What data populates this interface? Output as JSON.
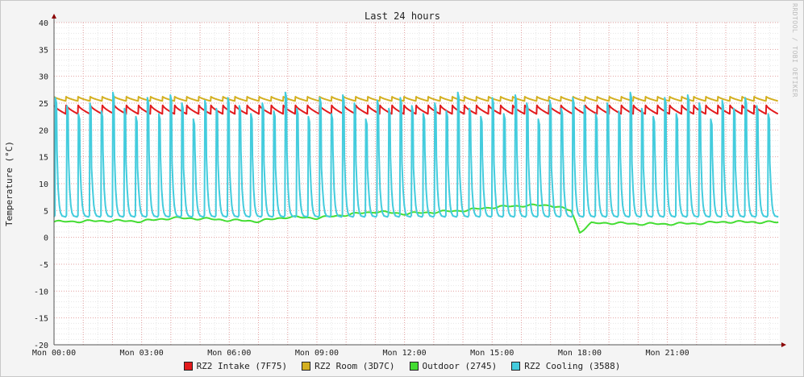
{
  "chart_data": {
    "type": "line",
    "title": "Last 24 hours",
    "ylabel": "Temperature (°C)",
    "xlabel": "",
    "ylim": [
      -20,
      40
    ],
    "yticks": [
      40,
      35,
      30,
      25,
      20,
      15,
      10,
      5,
      0,
      -5,
      -10,
      -15,
      -20
    ],
    "xlim_hours": [
      0,
      24.85
    ],
    "xticks": [
      {
        "hour": 0,
        "label": "Mon 00:00"
      },
      {
        "hour": 3,
        "label": "Mon 03:00"
      },
      {
        "hour": 6,
        "label": "Mon 06:00"
      },
      {
        "hour": 9,
        "label": "Mon 09:00"
      },
      {
        "hour": 12,
        "label": "Mon 12:00"
      },
      {
        "hour": 15,
        "label": "Mon 15:00"
      },
      {
        "hour": 18,
        "label": "Mon 18:00"
      },
      {
        "hour": 21,
        "label": "Mon 21:00"
      }
    ],
    "grid": true,
    "legend_position": "bottom",
    "watermark": "RRDTOOL / TOBI OETIKER",
    "series": [
      {
        "name": "RZ2 Intake (7F75)",
        "color": "#e31a1c",
        "pattern": "sawtooth",
        "min": 23.0,
        "max": 24.6,
        "cycles": 60
      },
      {
        "name": "RZ2 Room (3D7C)",
        "color": "#d4b020",
        "pattern": "sawtooth",
        "min": 25.4,
        "max": 26.2,
        "cycles": 60
      },
      {
        "name": "Outdoor (2745)",
        "color": "#44dd33",
        "pattern": "trend",
        "hours": [
          0,
          1,
          2,
          3,
          4,
          5,
          6,
          7,
          8,
          9,
          10,
          11,
          12,
          13,
          14,
          15,
          16,
          17,
          17.7,
          18.0,
          18.4,
          19,
          20,
          21,
          22,
          23,
          24.8
        ],
        "values": [
          2.9,
          3.0,
          3.1,
          3.0,
          3.6,
          3.5,
          3.2,
          3.0,
          3.8,
          3.6,
          4.2,
          4.8,
          4.4,
          4.7,
          5.0,
          5.6,
          5.9,
          6.0,
          5.0,
          1.0,
          2.6,
          2.7,
          2.5,
          2.5,
          2.6,
          2.9,
          2.8
        ]
      },
      {
        "name": "RZ2 Cooling (3588)",
        "color": "#44ccdd",
        "pattern": "spikes",
        "min": 3.8,
        "max": 26.0,
        "cycles": 63
      }
    ]
  }
}
